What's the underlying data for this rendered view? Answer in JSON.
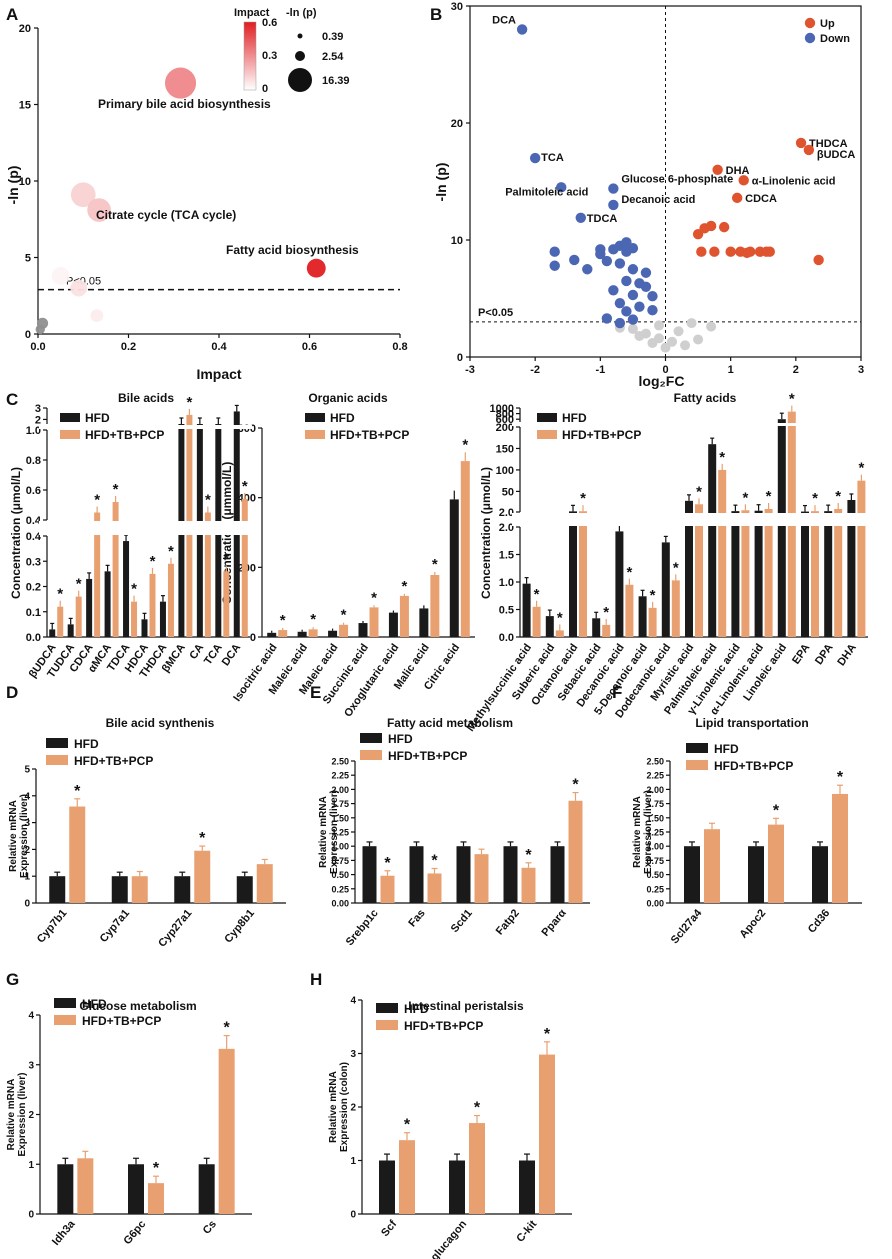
{
  "colors": {
    "hfd": "#1a1a1a",
    "treat": "#e8a070",
    "up": "#e0532f",
    "down": "#4b67b3",
    "ns": "#cfcfcf"
  },
  "chart_data": [
    {
      "panel": "A",
      "type": "scatter",
      "xlabel": "Impact",
      "ylabel": "-ln (p)",
      "xlim": [
        0,
        0.8
      ],
      "ylim": [
        0,
        20
      ],
      "xticks": [
        "0.0",
        "0.2",
        "0.4",
        "0.6",
        "0.8"
      ],
      "yticks": [
        "0",
        "5",
        "10",
        "15",
        "20"
      ],
      "threshold_label": "P<0.05",
      "threshold_value": 2.9,
      "legend_color_title": "Impact",
      "legend_color_ticks": [
        "0.6",
        "0.3",
        "0"
      ],
      "legend_size_title": "-ln (p)",
      "legend_size_values": [
        "0.39",
        "2.54",
        "16.39"
      ],
      "points": [
        {
          "x": 0.315,
          "y": 16.4,
          "impact": 0.32,
          "label": "Primary bile acid biosynthesis"
        },
        {
          "x": 0.1,
          "y": 9.1,
          "impact": 0.12,
          "label": ""
        },
        {
          "x": 0.135,
          "y": 8.1,
          "impact": 0.16,
          "label": "Citrate cycle (TCA cycle)"
        },
        {
          "x": 0.615,
          "y": 4.3,
          "impact": 0.62,
          "label": "Fatty acid biosynthesis"
        },
        {
          "x": 0.09,
          "y": 3.0,
          "impact": 0.08,
          "label": ""
        },
        {
          "x": 0.05,
          "y": 3.8,
          "impact": 0.03,
          "label": ""
        },
        {
          "x": 0.13,
          "y": 1.2,
          "impact": 0.05,
          "label": ""
        },
        {
          "x": 0.01,
          "y": 0.7,
          "impact": 0.0,
          "label": ""
        },
        {
          "x": 0.005,
          "y": 0.3,
          "impact": 0.0,
          "label": ""
        }
      ]
    },
    {
      "panel": "B",
      "type": "scatter",
      "xlabel": "log₂FC",
      "ylabel": "-ln (p)",
      "xlim": [
        -3,
        3
      ],
      "ylim": [
        0,
        30
      ],
      "xticks": [
        "-3",
        "-2",
        "-1",
        "0",
        "1",
        "2",
        "3"
      ],
      "yticks": [
        "0",
        "10",
        "20",
        "30"
      ],
      "threshold_label": "P<0.05",
      "threshold_value": 3,
      "legend": [
        "Up",
        "Down"
      ],
      "labeled_points": [
        {
          "x": -2.2,
          "y": 28,
          "group": "down",
          "label": "DCA"
        },
        {
          "x": -2.0,
          "y": 17,
          "group": "down",
          "label": "TCA"
        },
        {
          "x": -1.6,
          "y": 14.5,
          "group": "down",
          "label": "Palmitoleic acid"
        },
        {
          "x": -0.8,
          "y": 14.4,
          "group": "down",
          "label": "Glucose 6-phosphate"
        },
        {
          "x": -0.8,
          "y": 13.0,
          "group": "down",
          "label": "Decanoic acid"
        },
        {
          "x": -1.3,
          "y": 11.9,
          "group": "down",
          "label": "TDCA"
        },
        {
          "x": 0.8,
          "y": 16.0,
          "group": "up",
          "label": "DHA"
        },
        {
          "x": 2.08,
          "y": 18.3,
          "group": "up",
          "label": "THDCA"
        },
        {
          "x": 2.2,
          "y": 17.7,
          "group": "up",
          "label": "βUDCA"
        },
        {
          "x": 1.2,
          "y": 15.1,
          "group": "up",
          "label": "α-Linolenic acid"
        },
        {
          "x": 1.1,
          "y": 13.6,
          "group": "up",
          "label": "CDCA"
        }
      ],
      "down_points": [
        [
          -1.7,
          9
        ],
        [
          -1.7,
          7.8
        ],
        [
          -1.4,
          8.3
        ],
        [
          -1.2,
          7.5
        ],
        [
          -1.0,
          9.2
        ],
        [
          -0.8,
          9.2
        ],
        [
          -0.7,
          9.5
        ],
        [
          -0.6,
          9.0
        ],
        [
          -0.5,
          9.3
        ],
        [
          -0.9,
          8.2
        ],
        [
          -0.7,
          8.0
        ],
        [
          -0.5,
          7.5
        ],
        [
          -0.3,
          7.2
        ],
        [
          -0.6,
          6.5
        ],
        [
          -0.4,
          6.3
        ],
        [
          -0.8,
          5.7
        ],
        [
          -0.5,
          5.3
        ],
        [
          -0.7,
          4.6
        ],
        [
          -0.4,
          4.3
        ],
        [
          -0.2,
          4.0
        ],
        [
          -0.6,
          3.9
        ],
        [
          -0.9,
          3.3
        ],
        [
          -0.5,
          3.2
        ],
        [
          -0.7,
          2.9
        ],
        [
          -0.3,
          6.0
        ],
        [
          -0.2,
          5.2
        ],
        [
          -0.6,
          9.8
        ],
        [
          -1.0,
          8.8
        ]
      ],
      "up_points": [
        [
          0.5,
          10.5
        ],
        [
          0.6,
          11.0
        ],
        [
          0.7,
          11.2
        ],
        [
          0.55,
          9.0
        ],
        [
          0.9,
          11.1
        ],
        [
          1.0,
          9.0
        ],
        [
          1.15,
          9.0
        ],
        [
          1.3,
          9.0
        ],
        [
          1.45,
          9.0
        ],
        [
          1.6,
          9.0
        ],
        [
          0.75,
          9.0
        ],
        [
          2.35,
          8.3
        ],
        [
          1.25,
          8.9
        ],
        [
          1.55,
          9.0
        ]
      ],
      "ns_points": [
        [
          -0.5,
          2.4
        ],
        [
          -0.3,
          2.0
        ],
        [
          -0.1,
          1.6
        ],
        [
          0.1,
          1.3
        ],
        [
          0.3,
          1.0
        ],
        [
          0.5,
          1.5
        ],
        [
          -0.2,
          1.2
        ],
        [
          0.0,
          0.8
        ],
        [
          -0.4,
          1.8
        ],
        [
          0.2,
          2.2
        ],
        [
          0.7,
          2.6
        ],
        [
          -0.7,
          2.5
        ],
        [
          0.4,
          2.9
        ],
        [
          -0.1,
          2.7
        ]
      ]
    },
    {
      "panel": "C",
      "type": "bar",
      "title": "Bile acids",
      "ylabel": "Concentration (μmol/L)",
      "series": [
        "HFD",
        "HFD+TB+PCP"
      ],
      "yticks_low": [
        "0.0",
        "0.1",
        "0.2",
        "0.3",
        "0.4"
      ],
      "yticks_mid": [
        "0.4",
        "0.6",
        "0.8",
        "1.0"
      ],
      "yticks_high": [
        "2",
        "3"
      ],
      "categories": [
        "βUDCA",
        "TUDCA",
        "CDCA",
        "αMCA",
        "TDCA",
        "HDCA",
        "THDCA",
        "βMCA",
        "CA",
        "TCA",
        "DCA"
      ],
      "hfd": [
        0.03,
        0.05,
        0.23,
        0.26,
        0.38,
        0.07,
        0.14,
        1.2,
        1.2,
        1.2,
        2.7
      ],
      "treat": [
        0.12,
        0.16,
        0.45,
        0.52,
        0.14,
        0.25,
        0.29,
        2.4,
        0.45,
        0.26,
        0.54
      ],
      "sig": [
        true,
        true,
        true,
        true,
        true,
        true,
        true,
        true,
        true,
        true,
        true
      ]
    },
    {
      "panel": "C2",
      "type": "bar",
      "title": "Organic acids",
      "ylabel": "Concentration (μmmol/L)",
      "series": [
        "HFD",
        "HFD+TB+PCP"
      ],
      "ylim": [
        0,
        600
      ],
      "yticks": [
        "0",
        "200",
        "400",
        "600"
      ],
      "categories": [
        "Isocitric acid",
        "Maleic acid",
        "Maleic acid",
        "Succinic acid",
        "Oxoglutaric acid",
        "Malic acid",
        "Citric acid"
      ],
      "hfd": [
        12,
        15,
        18,
        40,
        70,
        82,
        395
      ],
      "treat": [
        20,
        22,
        35,
        85,
        118,
        178,
        505
      ],
      "sig": [
        true,
        true,
        true,
        true,
        true,
        true,
        true
      ]
    },
    {
      "panel": "C3",
      "type": "bar",
      "title": "Fatty acids",
      "ylabel": "Concentration (μmol/L)",
      "series": [
        "HFD",
        "HFD+TB+PCP"
      ],
      "yticks_low": [
        "0.0",
        "0.5",
        "1.0",
        "1.5",
        "2.0"
      ],
      "yticks_mid": [
        "2.0",
        "50",
        "100",
        "150",
        "200"
      ],
      "yticks_high": [
        "600",
        "800",
        "1000"
      ],
      "categories": [
        "Methylsuccinic acid",
        "Suberic acid",
        "Octanoic acid",
        "Sebacic acid",
        "Decanoic acid",
        "5-Decanoic acid",
        "Dodecanoic acid",
        "Myristic acid",
        "Palmitoleic acid",
        "γ-Linolenic acid",
        "α-Linolenic acid",
        "Linoleic acid",
        "EPA",
        "DPA",
        "DHA"
      ],
      "hfd": [
        0.97,
        0.38,
        3.5,
        0.34,
        1.92,
        0.74,
        1.72,
        28,
        160,
        4,
        5,
        600,
        3,
        4,
        30
      ],
      "treat": [
        0.55,
        0.12,
        3.8,
        0.22,
        0.95,
        0.53,
        1.03,
        20,
        100,
        6,
        9,
        870,
        4,
        9,
        75
      ],
      "sig": [
        true,
        true,
        true,
        true,
        true,
        true,
        true,
        true,
        true,
        true,
        true,
        true,
        true,
        true,
        true
      ]
    },
    {
      "panel": "D",
      "type": "bar",
      "title": "Bile acid synthenis",
      "ylabel": "Relative mRNA Expression (liver)",
      "series": [
        "HFD",
        "HFD+TB+PCP"
      ],
      "ylim": [
        0,
        5
      ],
      "yticks": [
        "0",
        "1",
        "2",
        "3",
        "4",
        "5"
      ],
      "categories": [
        "Cyp7b1",
        "Cyp7a1",
        "Cyp27a1",
        "Cyp8b1"
      ],
      "hfd": [
        1.0,
        1.0,
        1.0,
        1.0
      ],
      "treat": [
        3.6,
        1.0,
        1.95,
        1.45
      ],
      "sig": [
        true,
        false,
        true,
        false
      ]
    },
    {
      "panel": "E",
      "type": "bar",
      "title": "Fatty acid metabolism",
      "ylabel": "Relative mRNA Expression (liver)",
      "series": [
        "HFD",
        "HFD+TB+PCP"
      ],
      "ylim": [
        0,
        2.5
      ],
      "yticks": [
        "0.00",
        "0.25",
        "0.50",
        "0.75",
        "1.00",
        "1.25",
        "1.50",
        "1.75",
        "2.00",
        "2.25",
        "2.50"
      ],
      "categories": [
        "Srebp1c",
        "Fas",
        "Scd1",
        "Fatp2",
        "Pparα"
      ],
      "hfd": [
        1.0,
        1.0,
        1.0,
        1.0,
        1.0
      ],
      "treat": [
        0.48,
        0.52,
        0.86,
        0.62,
        1.8
      ],
      "sig": [
        true,
        true,
        false,
        true,
        true
      ]
    },
    {
      "panel": "F",
      "type": "bar",
      "title": "Lipid transportation",
      "ylabel": "Relative mRNA Expression (liver)",
      "series": [
        "HFD",
        "HFD+TB+PCP"
      ],
      "ylim": [
        0,
        2.5
      ],
      "yticks": [
        "0.00",
        "0.25",
        "0.50",
        "0.75",
        "1.00",
        "1.25",
        "1.50",
        "1.75",
        "2.00",
        "2.25",
        "2.50"
      ],
      "categories": [
        "Scl27a4",
        "Apoc2",
        "Cd36"
      ],
      "hfd": [
        1.0,
        1.0,
        1.0
      ],
      "treat": [
        1.3,
        1.38,
        1.92
      ],
      "sig": [
        false,
        true,
        true
      ]
    },
    {
      "panel": "G",
      "type": "bar",
      "title": "Glucose metabolism",
      "ylabel": "Relative mRNA Expression (liver)",
      "series": [
        "HFD",
        "HFD+TB+PCP"
      ],
      "ylim": [
        0,
        4
      ],
      "yticks": [
        "0",
        "1",
        "2",
        "3",
        "4"
      ],
      "categories": [
        "Idh3a",
        "G6pc",
        "Cs"
      ],
      "hfd": [
        1.0,
        1.0,
        1.0
      ],
      "treat": [
        1.12,
        0.62,
        3.32
      ],
      "sig": [
        false,
        true,
        true
      ]
    },
    {
      "panel": "H",
      "type": "bar",
      "title": "Intestinal peristalsis",
      "ylabel": "Relative mRNA Expression (colon)",
      "series": [
        "HFD",
        "HFD+TB+PCP"
      ],
      "ylim": [
        0,
        4
      ],
      "yticks": [
        "0",
        "1",
        "2",
        "3",
        "4"
      ],
      "categories": [
        "Scf",
        "Proglucagon",
        "C-kit"
      ],
      "hfd": [
        1.0,
        1.0,
        1.0
      ],
      "treat": [
        1.38,
        1.7,
        2.98
      ],
      "sig": [
        true,
        true,
        true
      ]
    }
  ]
}
